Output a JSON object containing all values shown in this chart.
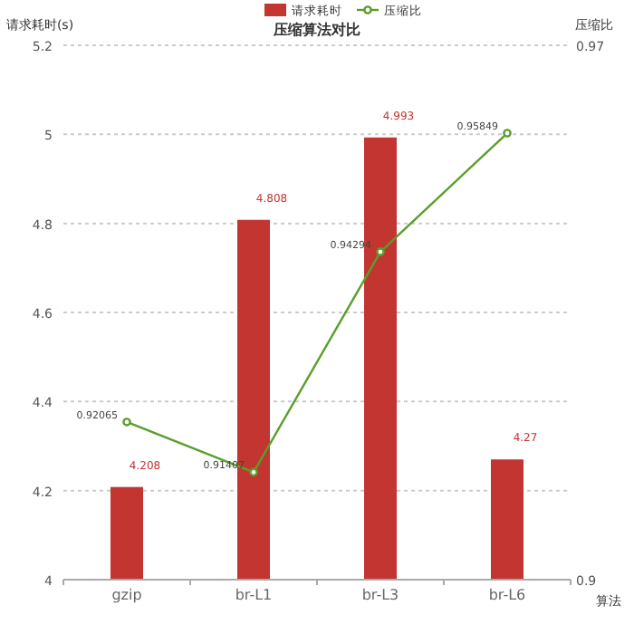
{
  "chart_data": {
    "type": "bar",
    "title": "压缩算法对比",
    "xlabel": "算法",
    "ylabel": "请求耗时(s)",
    "y2label": "压缩比",
    "categories": [
      "gzip",
      "br-L1",
      "br-L3",
      "br-L6"
    ],
    "series": [
      {
        "name": "请求耗时",
        "color": "#c23531",
        "values": [
          4.208,
          4.808,
          4.993,
          4.27
        ]
      },
      {
        "name": "压缩比",
        "type": "line",
        "axis": "y2",
        "color": "#5a9e2a",
        "marker": "circle",
        "values": [
          0.92065,
          0.91407,
          0.94294,
          0.95849
        ]
      }
    ],
    "ylim": [
      4,
      5.2
    ],
    "yticks": [
      4,
      4.2,
      4.4,
      4.6,
      4.8,
      5,
      5.2
    ],
    "y2lim": [
      0.9,
      0.97
    ],
    "y2ticks": [
      0.9,
      0.97
    ],
    "grid": "y",
    "legend": "top",
    "data_labels": true
  }
}
